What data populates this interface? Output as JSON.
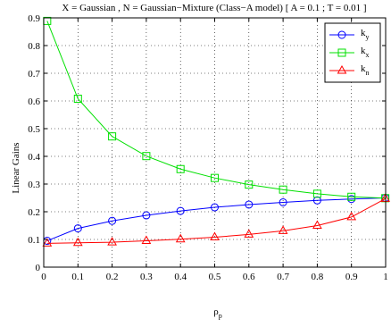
{
  "chart_data": {
    "type": "line",
    "title": "X = Gaussian , N = Gaussian−Mixture (Class−A model) [ A = 0.1 ; T = 0.01 ]",
    "xlabel": {
      "base": "ρ",
      "sub": "p"
    },
    "ylabel": "Linear Gains",
    "xlim": [
      0,
      1
    ],
    "ylim": [
      0,
      0.9
    ],
    "xticks": [
      0,
      0.1,
      0.2,
      0.3,
      0.4,
      0.5,
      0.6,
      0.7,
      0.8,
      0.9,
      1
    ],
    "xtick_labels": [
      "0",
      "0.1",
      "0.2",
      "0.3",
      "0.4",
      "0.5",
      "0.6",
      "0.7",
      "0.8",
      "0.9",
      "1"
    ],
    "yticks": [
      0,
      0.1,
      0.2,
      0.3,
      0.4,
      0.5,
      0.6,
      0.7,
      0.8,
      0.9
    ],
    "ytick_labels": [
      "0",
      "0.1",
      "0.2",
      "0.3",
      "0.4",
      "0.5",
      "0.6",
      "0.7",
      "0.8",
      "0.9"
    ],
    "grid": true,
    "legend_position": "top-right",
    "x": [
      0.01,
      0.1,
      0.2,
      0.3,
      0.4,
      0.5,
      0.6,
      0.7,
      0.8,
      0.9,
      0.999
    ],
    "series": [
      {
        "name": "k",
        "sub": "y",
        "color": "#0000ff",
        "marker": "circle",
        "values": [
          0.095,
          0.14,
          0.167,
          0.187,
          0.203,
          0.216,
          0.226,
          0.234,
          0.241,
          0.246,
          0.25
        ]
      },
      {
        "name": "k",
        "sub": "x",
        "color": "#00e000",
        "marker": "square",
        "values": [
          0.889,
          0.608,
          0.472,
          0.401,
          0.354,
          0.322,
          0.298,
          0.28,
          0.265,
          0.254,
          0.249
        ]
      },
      {
        "name": "k",
        "sub": "n",
        "color": "#ff0000",
        "marker": "triangle",
        "values": [
          0.086,
          0.088,
          0.09,
          0.095,
          0.101,
          0.108,
          0.118,
          0.131,
          0.15,
          0.181,
          0.247
        ]
      }
    ]
  }
}
